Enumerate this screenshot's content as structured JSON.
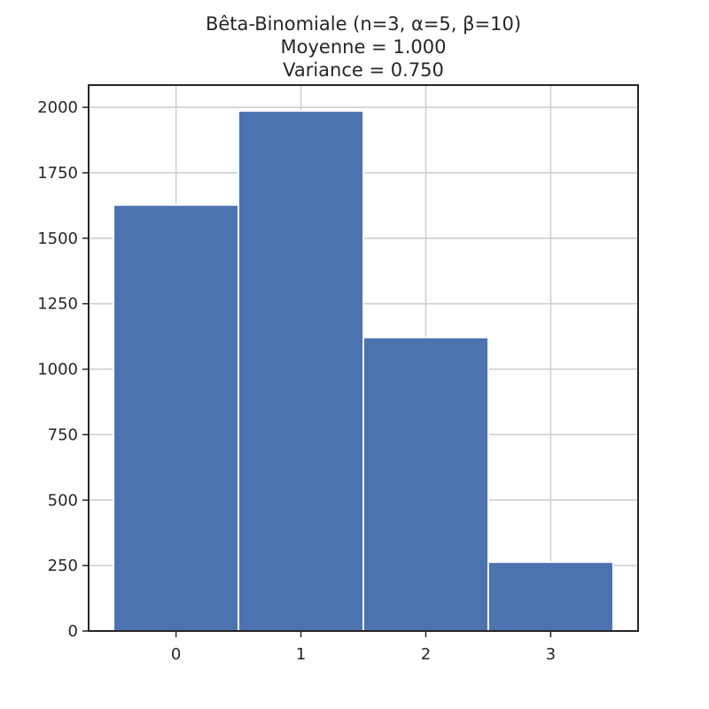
{
  "chart_data": {
    "type": "bar",
    "title_lines": [
      "Bêta-Binomiale (n=3, α=5, β=10)",
      "Moyenne =  1.000",
      "Variance =  0.750"
    ],
    "categories": [
      "0",
      "1",
      "2",
      "3"
    ],
    "x": [
      0,
      1,
      2,
      3
    ],
    "values": [
      1627,
      1986,
      1121,
      263
    ],
    "xlim": [
      -0.7,
      3.7
    ],
    "ylim": [
      0,
      2085
    ],
    "yticks": [
      0,
      250,
      500,
      750,
      1000,
      1250,
      1500,
      1750,
      2000
    ],
    "ytick_labels": [
      "0",
      "250",
      "500",
      "750",
      "1000",
      "1250",
      "1500",
      "1750",
      "2000"
    ],
    "xlabel": "",
    "ylabel": "",
    "grid": true,
    "bar_color": "#4c72b0"
  }
}
